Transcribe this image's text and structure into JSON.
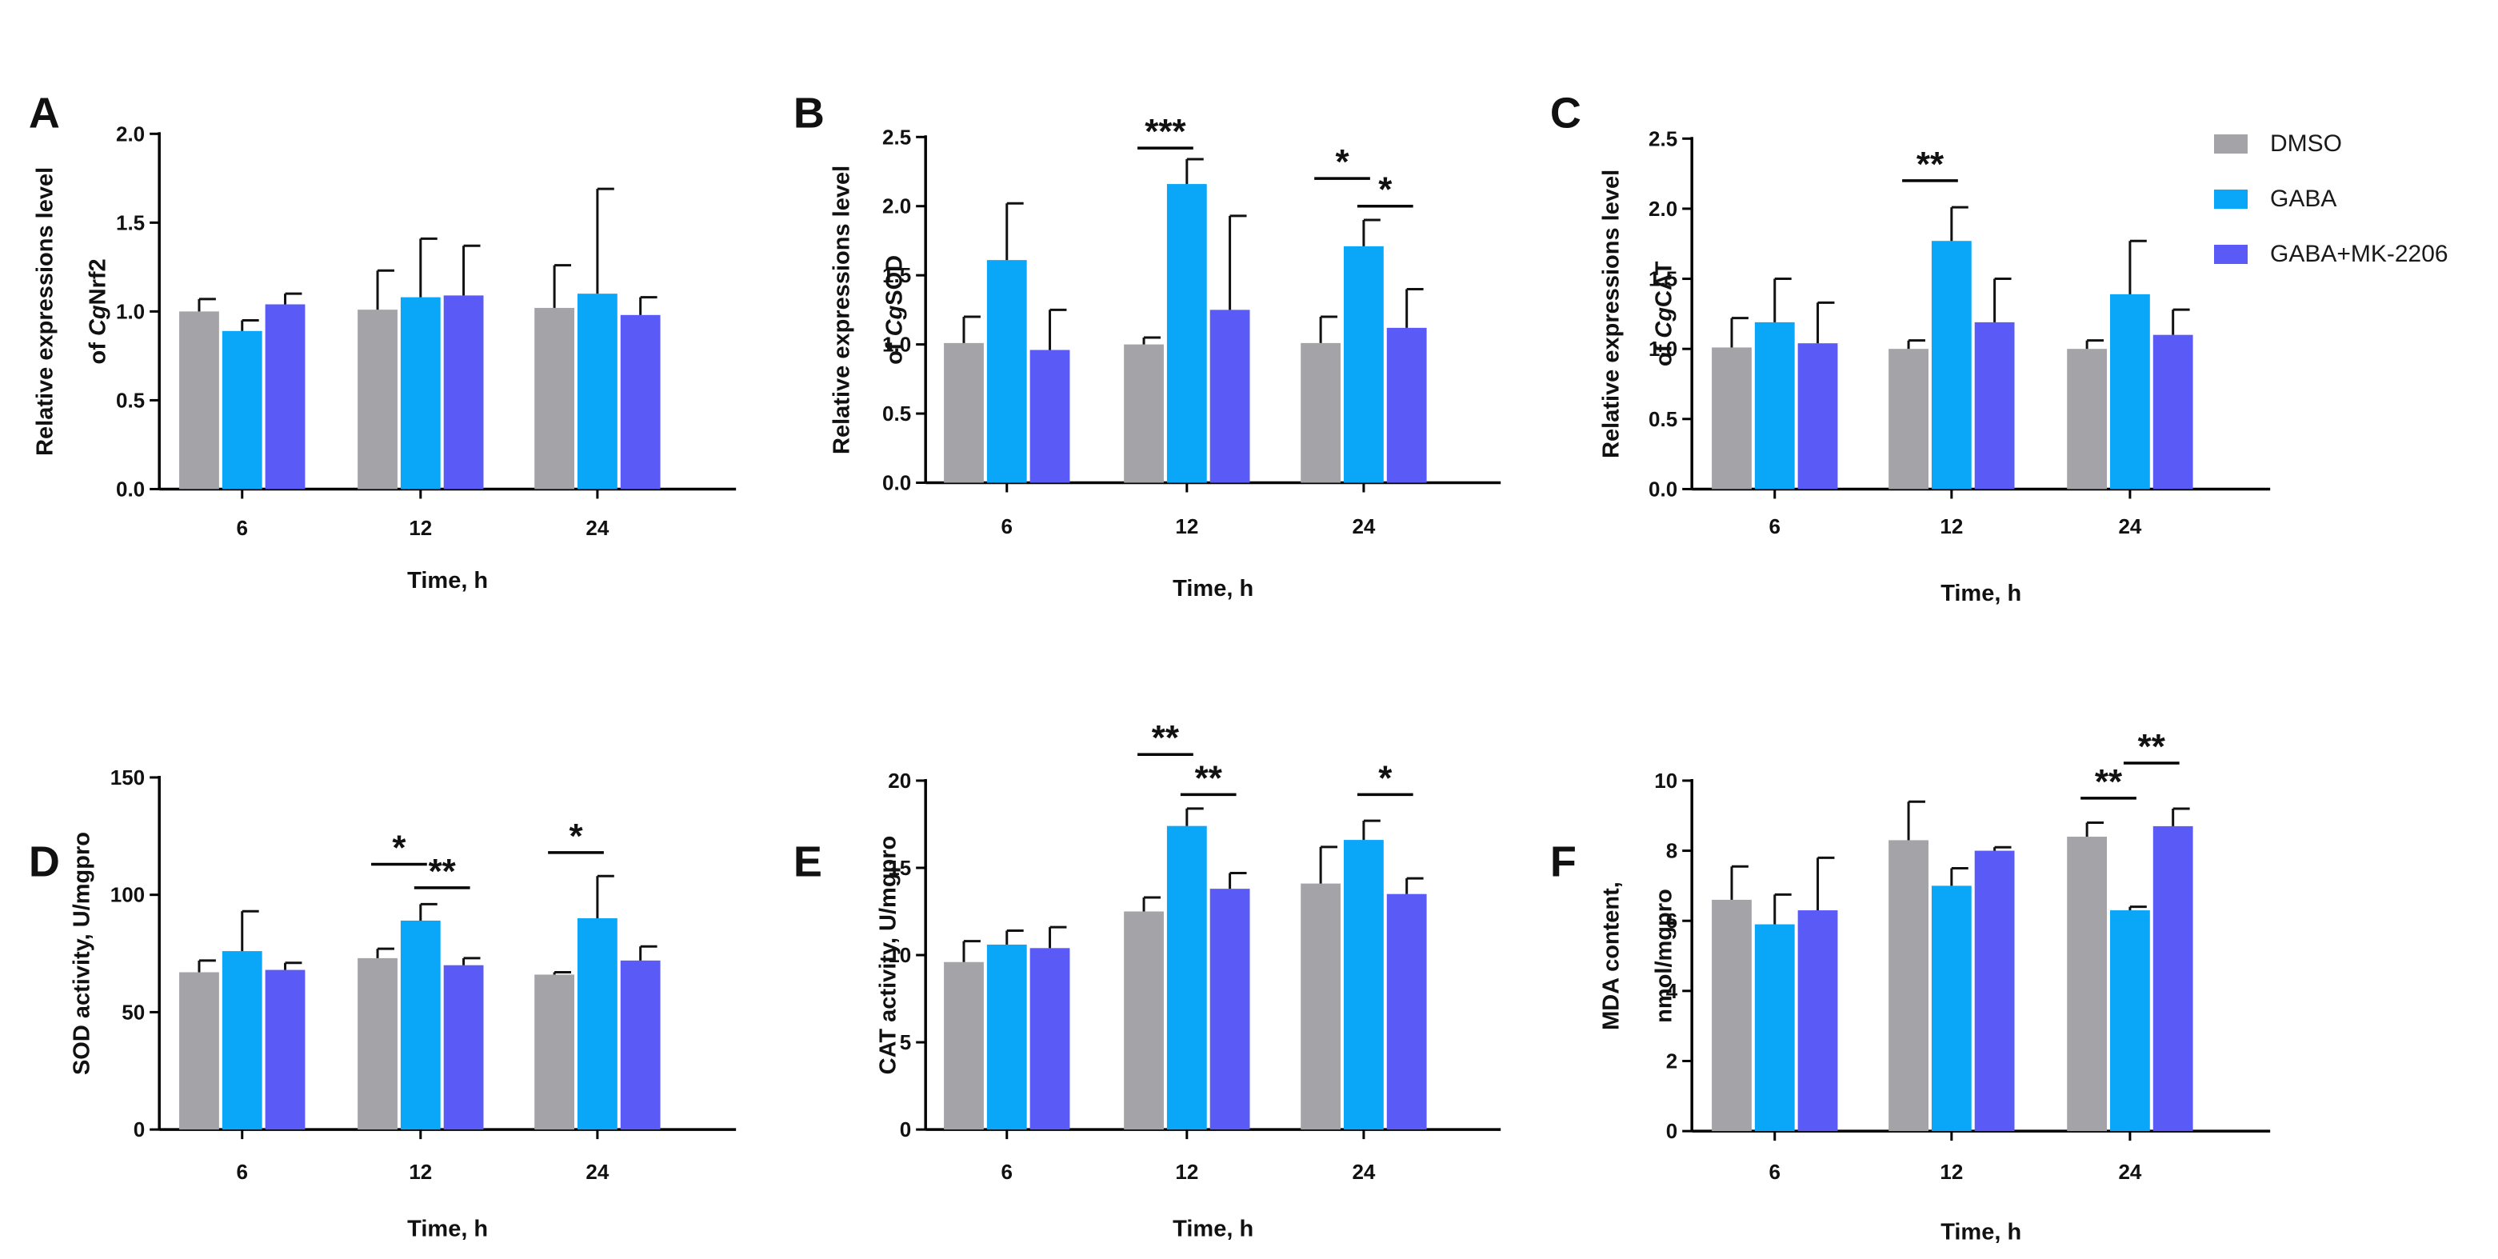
{
  "colors": {
    "DMSO": "#a3a3a8",
    "GABA": "#0aa6f7",
    "GABA+MK-2206": "#5a5af7"
  },
  "legend": {
    "items": [
      {
        "label": "DMSO",
        "color": "#a3a3a8"
      },
      {
        "label": "GABA",
        "color": "#0aa6f7"
      },
      {
        "label": "GABA+MK-2206",
        "color": "#5a5af7"
      }
    ]
  },
  "chart_data": [
    {
      "panel": "A",
      "type": "bar",
      "categories": [
        "6",
        "12",
        "24"
      ],
      "xlabel": "Time, h",
      "ylabel_lines": [
        [
          {
            "t": "Relative  expressions level",
            "i": false
          }
        ],
        [
          {
            "t": "of ",
            "i": false
          },
          {
            "t": "Cg",
            "i": true
          },
          {
            "t": "Nrf2",
            "i": false
          }
        ]
      ],
      "ylim": [
        0,
        2.0
      ],
      "yticks": [
        "0.0",
        "0.5",
        "1.0",
        "1.5",
        "2.0"
      ],
      "series": [
        {
          "name": "DMSO",
          "values": [
            1.0,
            1.01,
            1.02
          ],
          "errors": [
            0.07,
            0.22,
            0.24
          ]
        },
        {
          "name": "GABA",
          "values": [
            0.89,
            1.08,
            1.1
          ],
          "errors": [
            0.06,
            0.33,
            0.59
          ]
        },
        {
          "name": "GABA+MK-2206",
          "values": [
            1.04,
            1.09,
            0.98
          ],
          "errors": [
            0.06,
            0.28,
            0.1
          ]
        }
      ],
      "significance": []
    },
    {
      "panel": "B",
      "type": "bar",
      "categories": [
        "6",
        "12",
        "24"
      ],
      "xlabel": "Time, h",
      "ylabel_lines": [
        [
          {
            "t": "Relative  expressions level",
            "i": false
          }
        ],
        [
          {
            "t": "of ",
            "i": false
          },
          {
            "t": "Cg",
            "i": true
          },
          {
            "t": "SOD",
            "i": false
          }
        ]
      ],
      "ylim": [
        0,
        2.5
      ],
      "yticks": [
        "0.0",
        "0.5",
        "1.0",
        "1.5",
        "2.0",
        "2.5"
      ],
      "series": [
        {
          "name": "DMSO",
          "values": [
            1.01,
            1.0,
            1.01
          ],
          "errors": [
            0.19,
            0.05,
            0.19
          ]
        },
        {
          "name": "GABA",
          "values": [
            1.61,
            2.16,
            1.71
          ],
          "errors": [
            0.41,
            0.18,
            0.19
          ]
        },
        {
          "name": "GABA+MK-2206",
          "values": [
            0.96,
            1.25,
            1.12
          ],
          "errors": [
            0.29,
            0.68,
            0.28
          ]
        }
      ],
      "significance": [
        {
          "group": 1,
          "from": 0,
          "to": 1,
          "level": 2.42,
          "label": "***"
        },
        {
          "group": 2,
          "from": 0,
          "to": 1,
          "level": 2.2,
          "label": "*"
        },
        {
          "group": 2,
          "from": 1,
          "to": 2,
          "level": 2.0,
          "label": "*"
        }
      ]
    },
    {
      "panel": "C",
      "type": "bar",
      "categories": [
        "6",
        "12",
        "24"
      ],
      "xlabel": "Time, h",
      "ylabel_lines": [
        [
          {
            "t": "Relative  expressions level",
            "i": false
          }
        ],
        [
          {
            "t": "of ",
            "i": false
          },
          {
            "t": "Cg",
            "i": true
          },
          {
            "t": "CAT",
            "i": false
          }
        ]
      ],
      "ylim": [
        0,
        2.5
      ],
      "yticks": [
        "0.0",
        "0.5",
        "1.0",
        "1.5",
        "2.0",
        "2.5"
      ],
      "series": [
        {
          "name": "DMSO",
          "values": [
            1.01,
            1.0,
            1.0
          ],
          "errors": [
            0.21,
            0.06,
            0.06
          ]
        },
        {
          "name": "GABA",
          "values": [
            1.19,
            1.77,
            1.39
          ],
          "errors": [
            0.31,
            0.24,
            0.38
          ]
        },
        {
          "name": "GABA+MK-2206",
          "values": [
            1.04,
            1.19,
            1.1
          ],
          "errors": [
            0.29,
            0.31,
            0.18
          ]
        }
      ],
      "significance": [
        {
          "group": 1,
          "from": 0,
          "to": 1,
          "level": 2.2,
          "label": "**"
        }
      ]
    },
    {
      "panel": "D",
      "type": "bar",
      "categories": [
        "6",
        "12",
        "24"
      ],
      "xlabel": "Time, h",
      "ylabel_lines": [
        [
          {
            "t": "SOD activity, U/mgpro",
            "i": false
          }
        ]
      ],
      "ylim": [
        0,
        150
      ],
      "yticks": [
        "0",
        "50",
        "100",
        "150"
      ],
      "series": [
        {
          "name": "DMSO",
          "values": [
            67,
            73,
            66
          ],
          "errors": [
            5,
            4,
            1
          ]
        },
        {
          "name": "GABA",
          "values": [
            76,
            89,
            90
          ],
          "errors": [
            17,
            7,
            18
          ]
        },
        {
          "name": "GABA+MK-2206",
          "values": [
            68,
            70,
            72
          ],
          "errors": [
            3,
            3,
            6
          ]
        }
      ],
      "significance": [
        {
          "group": 1,
          "from": 0,
          "to": 1,
          "level": 113,
          "label": "*"
        },
        {
          "group": 1,
          "from": 1,
          "to": 2,
          "level": 103,
          "label": "**"
        },
        {
          "group": 2,
          "from": 0,
          "to": 1,
          "level": 118,
          "label": "*"
        }
      ]
    },
    {
      "panel": "E",
      "type": "bar",
      "categories": [
        "6",
        "12",
        "24"
      ],
      "xlabel": "Time, h",
      "ylabel_lines": [
        [
          {
            "t": "CAT activity, U/mgpro",
            "i": false
          }
        ]
      ],
      "ylim": [
        0,
        20
      ],
      "yticks": [
        "0",
        "5",
        "10",
        "15",
        "20"
      ],
      "series": [
        {
          "name": "DMSO",
          "values": [
            9.6,
            12.5,
            14.1
          ],
          "errors": [
            1.2,
            0.8,
            2.1
          ]
        },
        {
          "name": "GABA",
          "values": [
            10.6,
            17.4,
            16.6
          ],
          "errors": [
            0.8,
            1.0,
            1.1
          ]
        },
        {
          "name": "GABA+MK-2206",
          "values": [
            10.4,
            13.8,
            13.5
          ],
          "errors": [
            1.2,
            0.9,
            0.9
          ]
        }
      ],
      "significance": [
        {
          "group": 1,
          "from": 0,
          "to": 1,
          "level": 21.5,
          "label": "**"
        },
        {
          "group": 1,
          "from": 1,
          "to": 2,
          "level": 19.2,
          "label": "**"
        },
        {
          "group": 2,
          "from": 1,
          "to": 2,
          "level": 19.2,
          "label": "*"
        }
      ]
    },
    {
      "panel": "F",
      "type": "bar",
      "categories": [
        "6",
        "12",
        "24"
      ],
      "xlabel": "Time, h",
      "ylabel_lines": [
        [
          {
            "t": "MDA content,",
            "i": false
          }
        ],
        [
          {
            "t": "nmol/mgpro",
            "i": false
          }
        ]
      ],
      "ylim": [
        0,
        10
      ],
      "yticks": [
        "0",
        "2",
        "4",
        "6",
        "8",
        "10"
      ],
      "series": [
        {
          "name": "DMSO",
          "values": [
            6.6,
            8.3,
            8.4
          ],
          "errors": [
            0.95,
            1.1,
            0.4
          ]
        },
        {
          "name": "GABA",
          "values": [
            5.9,
            7.0,
            6.3
          ],
          "errors": [
            0.85,
            0.5,
            0.1
          ]
        },
        {
          "name": "GABA+MK-2206",
          "values": [
            6.3,
            8.0,
            8.7
          ],
          "errors": [
            1.5,
            0.1,
            0.5
          ]
        }
      ],
      "significance": [
        {
          "group": 2,
          "from": 0,
          "to": 1,
          "level": 9.5,
          "label": "**"
        },
        {
          "group": 2,
          "from": 1,
          "to": 2,
          "level": 10.5,
          "label": "**"
        }
      ]
    }
  ]
}
